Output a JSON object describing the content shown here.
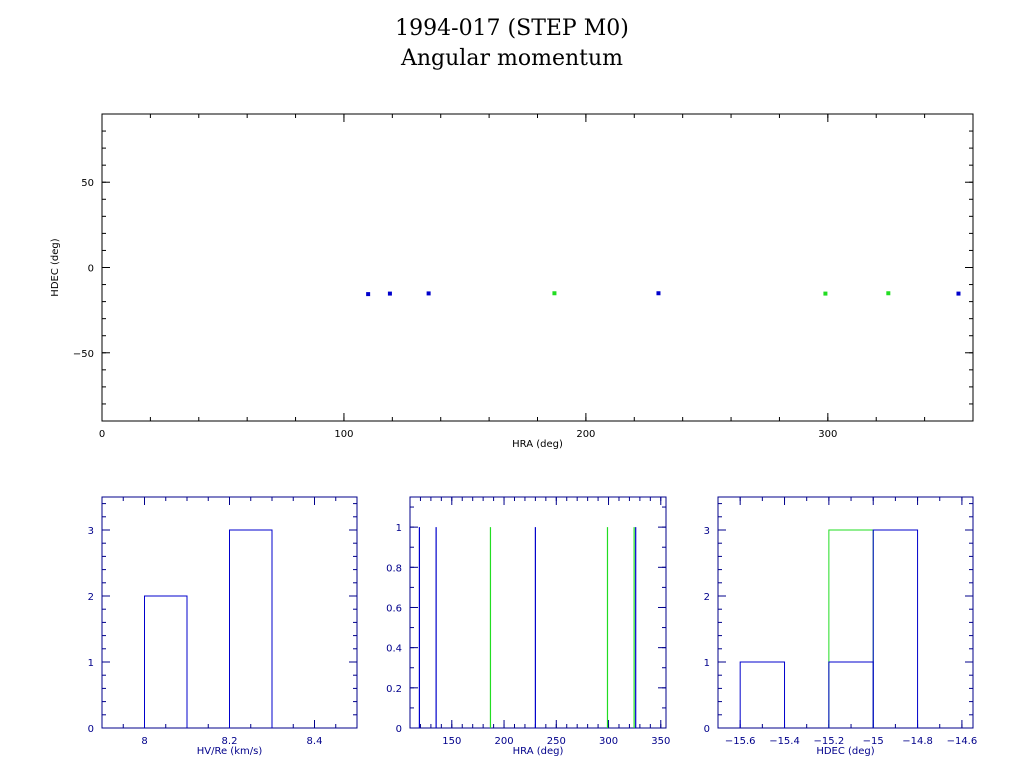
{
  "header": {
    "title": "1994-017 (STEP M0)",
    "subtitle": "Angular momentum"
  },
  "colors": {
    "axis": "#000000",
    "hist_axis": "#00008b",
    "blue": "#0000cc",
    "green": "#22dd22"
  },
  "chart_data": [
    {
      "type": "scatter",
      "xlabel": "HRA (deg)",
      "ylabel": "HDEC (deg)",
      "xlim": [
        0,
        360
      ],
      "ylim": [
        -90,
        90
      ],
      "xticks": [
        0,
        100,
        200,
        300
      ],
      "yticks": [
        -50,
        0,
        50
      ],
      "series": [
        {
          "color": "blue",
          "points": [
            [
              110,
              -15.6
            ],
            [
              119,
              -15.3
            ],
            [
              135,
              -15.2
            ],
            [
              230,
              -15.1
            ],
            [
              354,
              -15.3
            ]
          ]
        },
        {
          "color": "green",
          "points": [
            [
              187,
              -15.1
            ],
            [
              299,
              -15.3
            ],
            [
              325,
              -15.1
            ]
          ]
        }
      ]
    },
    {
      "type": "bar",
      "xlabel": "HV/Re (km/s)",
      "xlim": [
        7.9,
        8.5
      ],
      "ylim": [
        0,
        3.5
      ],
      "xticks": [
        8,
        8.2,
        8.4
      ],
      "yticks": [
        0,
        1,
        2,
        3
      ],
      "series": [
        {
          "color": "blue",
          "bins": [
            [
              8.0,
              8.1,
              2
            ],
            [
              8.2,
              8.3,
              3
            ]
          ]
        }
      ]
    },
    {
      "type": "bar",
      "xlabel": "HRA (deg)",
      "xlim": [
        110,
        355
      ],
      "ylim": [
        0,
        1.15
      ],
      "xticks": [
        150,
        200,
        250,
        300,
        350
      ],
      "yticks": [
        0,
        0.2,
        0.4,
        0.6,
        0.8,
        1
      ],
      "series": [
        {
          "color": "blue",
          "lines": [
            [
              119,
              1
            ],
            [
              135,
              1
            ],
            [
              230,
              1
            ],
            [
              326,
              1
            ]
          ]
        },
        {
          "color": "green",
          "lines": [
            [
              187,
              1
            ],
            [
              299,
              1
            ],
            [
              324.5,
              1
            ]
          ]
        }
      ]
    },
    {
      "type": "bar",
      "xlabel": "HDEC (deg)",
      "xlim": [
        -15.7,
        -14.55
      ],
      "ylim": [
        0,
        3.5
      ],
      "xticks": [
        -15.6,
        -15.4,
        -15.2,
        -15,
        -14.8,
        -14.6
      ],
      "yticks": [
        0,
        1,
        2,
        3
      ],
      "series": [
        {
          "color": "green",
          "bins": [
            [
              -15.2,
              -15.0,
              3
            ]
          ]
        },
        {
          "color": "blue",
          "bins": [
            [
              -15.6,
              -15.4,
              1
            ],
            [
              -15.2,
              -15.0,
              1
            ],
            [
              -15.0,
              -14.8,
              3
            ]
          ]
        }
      ]
    }
  ]
}
